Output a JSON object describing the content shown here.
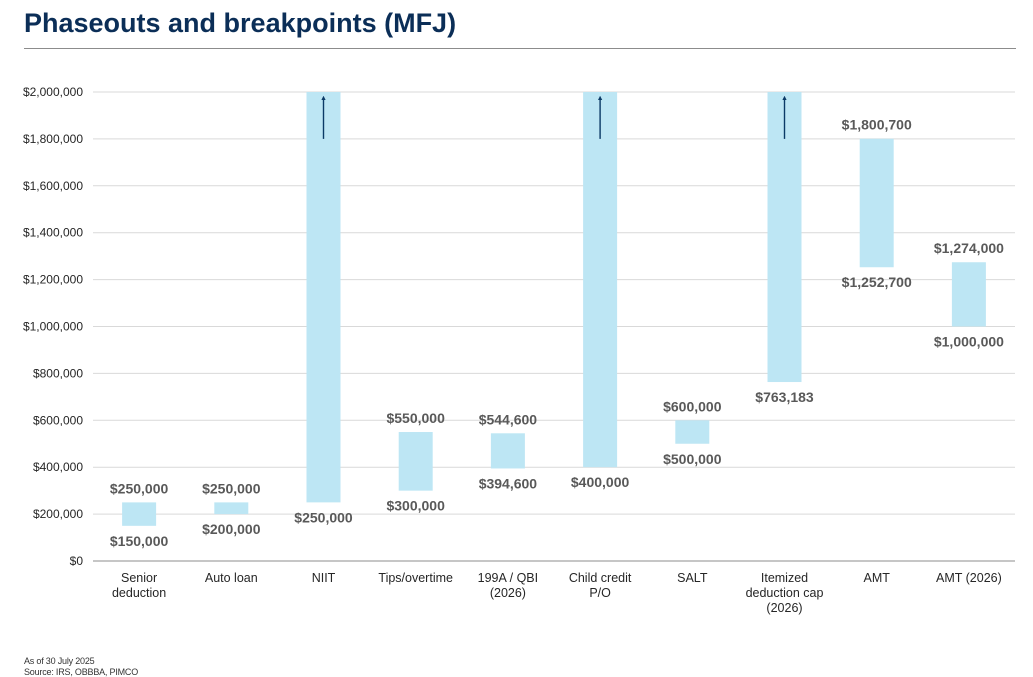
{
  "page": {
    "title": "Phaseouts and breakpoints (MFJ)",
    "footnote_date": "As of 30 July 2025",
    "footnote_source": "Source: IRS, OBBBA, PIMCO"
  },
  "colors": {
    "bar": "#bde6f4",
    "arrow": "#0b3a66",
    "title": "#0b2e57",
    "label": "#595959",
    "grid": "#d9d9d9"
  },
  "chart_data": {
    "type": "bar",
    "subtype": "floating-range",
    "title": "",
    "xlabel": "",
    "ylabel": "",
    "ylim": [
      0,
      2000000
    ],
    "yticks": [
      0,
      200000,
      400000,
      600000,
      800000,
      1000000,
      1200000,
      1400000,
      1600000,
      1800000,
      2000000
    ],
    "ytick_labels": [
      "$0",
      "$200,000",
      "$400,000",
      "$600,000",
      "$800,000",
      "$1,000,000",
      "$1,200,000",
      "$1,400,000",
      "$1,600,000",
      "$1,800,000",
      "$2,000,000"
    ],
    "grid": true,
    "legend": "none",
    "categories": [
      [
        "Senior",
        "deduction"
      ],
      [
        "Auto loan"
      ],
      [
        "NIIT"
      ],
      [
        "Tips/overtime"
      ],
      [
        "199A / QBI",
        "(2026)"
      ],
      [
        "Child credit",
        "P/O"
      ],
      [
        "SALT"
      ],
      [
        "Itemized",
        "deduction cap",
        "(2026)"
      ],
      [
        "AMT"
      ],
      [
        "AMT (2026)"
      ]
    ],
    "ranges": [
      {
        "low": 150000,
        "high": 250000,
        "low_label": "$150,000",
        "high_label": "$250,000",
        "open_ended": false
      },
      {
        "low": 200000,
        "high": 250000,
        "low_label": "$200,000",
        "high_label": "$250,000",
        "open_ended": false
      },
      {
        "low": 250000,
        "high": 2000000,
        "low_label": "$250,000",
        "high_label": "",
        "open_ended": true
      },
      {
        "low": 300000,
        "high": 550000,
        "low_label": "$300,000",
        "high_label": "$550,000",
        "open_ended": false
      },
      {
        "low": 394600,
        "high": 544600,
        "low_label": "$394,600",
        "high_label": "$544,600",
        "open_ended": false
      },
      {
        "low": 400000,
        "high": 2000000,
        "low_label": "$400,000",
        "high_label": "",
        "open_ended": true
      },
      {
        "low": 500000,
        "high": 600000,
        "low_label": "$500,000",
        "high_label": "$600,000",
        "open_ended": false
      },
      {
        "low": 763183,
        "high": 2000000,
        "low_label": "$763,183",
        "high_label": "",
        "open_ended": true
      },
      {
        "low": 1252700,
        "high": 1800700,
        "low_label": "$1,252,700",
        "high_label": "$1,800,700",
        "open_ended": false
      },
      {
        "low": 1000000,
        "high": 1274000,
        "low_label": "$1,000,000",
        "high_label": "$1,274,000",
        "open_ended": false
      }
    ]
  }
}
